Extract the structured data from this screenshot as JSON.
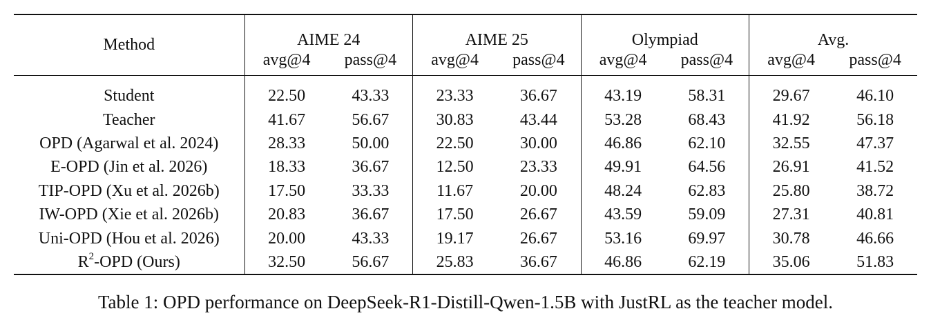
{
  "table": {
    "header": {
      "method": "Method",
      "groups": [
        "AIME 24",
        "AIME 25",
        "Olympiad",
        "Avg."
      ],
      "subcols": [
        "avg@4",
        "pass@4"
      ]
    },
    "rows": [
      {
        "method": "Student",
        "values": [
          "22.50",
          "43.33",
          "23.33",
          "36.67",
          "43.19",
          "58.31",
          "29.67",
          "46.10"
        ],
        "bold": [
          false,
          false,
          false,
          true,
          false,
          false,
          false,
          false
        ]
      },
      {
        "method": "Teacher",
        "values": [
          "41.67",
          "56.67",
          "30.83",
          "43.44",
          "53.28",
          "68.43",
          "41.92",
          "56.18"
        ],
        "bold": [
          false,
          false,
          false,
          false,
          false,
          false,
          false,
          false
        ]
      },
      {
        "method": "OPD (Agarwal et al. 2024)",
        "values": [
          "28.33",
          "50.00",
          "22.50",
          "30.00",
          "46.86",
          "62.10",
          "32.55",
          "47.37"
        ],
        "bold": [
          false,
          false,
          false,
          false,
          false,
          false,
          false,
          false
        ]
      },
      {
        "method": "E-OPD (Jin et al. 2026)",
        "values": [
          "18.33",
          "36.67",
          "12.50",
          "23.33",
          "49.91",
          "64.56",
          "26.91",
          "41.52"
        ],
        "bold": [
          false,
          false,
          false,
          false,
          false,
          false,
          false,
          false
        ]
      },
      {
        "method": "TIP-OPD (Xu et al. 2026b)",
        "values": [
          "17.50",
          "33.33",
          "11.67",
          "20.00",
          "48.24",
          "62.83",
          "25.80",
          "38.72"
        ],
        "bold": [
          false,
          false,
          false,
          false,
          false,
          false,
          false,
          false
        ]
      },
      {
        "method": "IW-OPD (Xie et al. 2026b)",
        "values": [
          "20.83",
          "36.67",
          "17.50",
          "26.67",
          "43.59",
          "59.09",
          "27.31",
          "40.81"
        ],
        "bold": [
          false,
          false,
          false,
          false,
          false,
          false,
          false,
          false
        ]
      },
      {
        "method": "Uni-OPD (Hou et al. 2026)",
        "values": [
          "20.00",
          "43.33",
          "19.17",
          "26.67",
          "53.16",
          "69.97",
          "30.78",
          "46.66"
        ],
        "bold": [
          false,
          false,
          false,
          false,
          true,
          true,
          false,
          false
        ]
      },
      {
        "method_prefix": "R",
        "method_sup": "2",
        "method_suffix": "-OPD (Ours)",
        "values": [
          "32.50",
          "56.67",
          "25.83",
          "36.67",
          "46.86",
          "62.19",
          "35.06",
          "51.83"
        ],
        "bold": [
          true,
          true,
          true,
          true,
          false,
          false,
          true,
          true
        ]
      }
    ]
  },
  "caption": "Table 1: OPD performance on DeepSeek-R1-Distill-Qwen-1.5B with JustRL as the teacher model."
}
